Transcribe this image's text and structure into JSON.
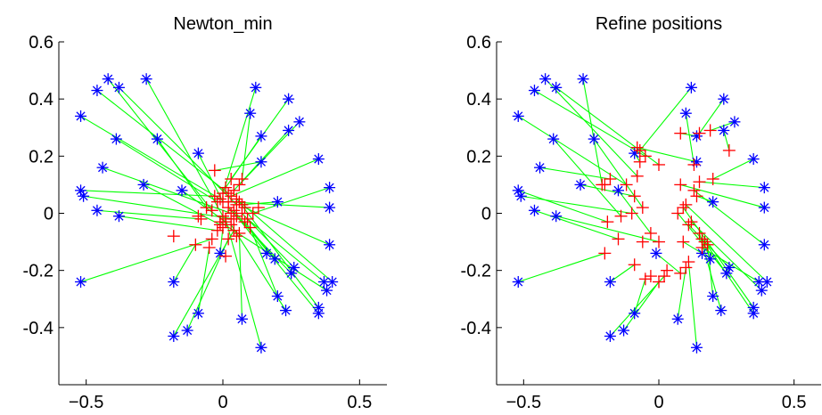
{
  "chart_data": [
    {
      "type": "scatter",
      "title": "Newton_min",
      "xlim": [
        -0.6,
        0.6
      ],
      "ylim": [
        -0.6,
        0.6
      ],
      "xticks": [
        -0.5,
        0,
        0.5
      ],
      "xtick_labels": [
        "−0.5",
        "0",
        "0.5"
      ],
      "yticks": [
        -0.4,
        -0.2,
        0,
        0.2,
        0.4,
        0.6
      ],
      "ytick_labels": [
        "-0.4",
        "-0.2",
        "0",
        "0.2",
        "0.4",
        "0.6"
      ],
      "grid": false,
      "colors": {
        "original": "#0000ff",
        "estimated": "#ff0000",
        "link": "#00ff00"
      },
      "pairs": [
        {
          "from": [
            -0.52,
            0.34
          ],
          "to": [
            -0.01,
            0.05
          ]
        },
        {
          "from": [
            -0.46,
            0.43
          ],
          "to": [
            0.02,
            0.07
          ]
        },
        {
          "from": [
            -0.42,
            0.47
          ],
          "to": [
            -0.04,
            0.01
          ]
        },
        {
          "from": [
            -0.38,
            0.44
          ],
          "to": [
            0.05,
            0.03
          ]
        },
        {
          "from": [
            -0.28,
            0.47
          ],
          "to": [
            0.0,
            -0.01
          ]
        },
        {
          "from": [
            -0.39,
            0.26
          ],
          "to": [
            -0.02,
            0.04
          ]
        },
        {
          "from": [
            -0.44,
            0.16
          ],
          "to": [
            0.03,
            0.0
          ]
        },
        {
          "from": [
            -0.24,
            0.26
          ],
          "to": [
            -0.06,
            0.02
          ]
        },
        {
          "from": [
            -0.52,
            0.08
          ],
          "to": [
            -0.03,
            0.06
          ]
        },
        {
          "from": [
            -0.51,
            0.06
          ],
          "to": [
            0.04,
            -0.02
          ]
        },
        {
          "from": [
            -0.29,
            0.1
          ],
          "to": [
            -0.01,
            -0.04
          ]
        },
        {
          "from": [
            -0.15,
            0.08
          ],
          "to": [
            0.01,
            -0.03
          ]
        },
        {
          "from": [
            -0.46,
            0.01
          ],
          "to": [
            -0.08,
            -0.02
          ]
        },
        {
          "from": [
            -0.38,
            -0.01
          ],
          "to": [
            -0.02,
            -0.06
          ]
        },
        {
          "from": [
            -0.52,
            -0.24
          ],
          "to": [
            -0.04,
            -0.09
          ]
        },
        {
          "from": [
            -0.18,
            -0.24
          ],
          "to": [
            -0.1,
            -0.11
          ]
        },
        {
          "from": [
            -0.09,
            -0.35
          ],
          "to": [
            -0.05,
            -0.12
          ]
        },
        {
          "from": [
            -0.13,
            -0.41
          ],
          "to": [
            0.02,
            -0.09
          ]
        },
        {
          "from": [
            -0.18,
            -0.43
          ],
          "to": [
            0.04,
            -0.06
          ]
        },
        {
          "from": [
            -0.01,
            -0.14
          ],
          "to": [
            0.0,
            -0.05
          ]
        },
        {
          "from": [
            0.07,
            -0.37
          ],
          "to": [
            0.06,
            -0.07
          ]
        },
        {
          "from": [
            0.14,
            -0.47
          ],
          "to": [
            0.01,
            -0.02
          ]
        },
        {
          "from": [
            0.16,
            -0.14
          ],
          "to": [
            0.05,
            -0.01
          ]
        },
        {
          "from": [
            0.19,
            -0.16
          ],
          "to": [
            0.08,
            -0.03
          ]
        },
        {
          "from": [
            0.2,
            -0.29
          ],
          "to": [
            0.1,
            -0.05
          ]
        },
        {
          "from": [
            0.23,
            -0.34
          ],
          "to": [
            0.03,
            -0.04
          ]
        },
        {
          "from": [
            0.26,
            -0.19
          ],
          "to": [
            0.07,
            0.0
          ]
        },
        {
          "from": [
            0.25,
            -0.21
          ],
          "to": [
            0.02,
            0.02
          ]
        },
        {
          "from": [
            0.35,
            -0.33
          ],
          "to": [
            0.06,
            0.04
          ]
        },
        {
          "from": [
            0.35,
            -0.35
          ],
          "to": [
            0.04,
            0.01
          ]
        },
        {
          "from": [
            0.37,
            -0.24
          ],
          "to": [
            0.09,
            -0.02
          ]
        },
        {
          "from": [
            0.38,
            -0.27
          ],
          "to": [
            -0.01,
            -0.03
          ]
        },
        {
          "from": [
            0.4,
            -0.24
          ],
          "to": [
            0.05,
            0.05
          ]
        },
        {
          "from": [
            0.39,
            -0.11
          ],
          "to": [
            0.08,
            0.02
          ]
        },
        {
          "from": [
            0.39,
            0.02
          ],
          "to": [
            0.02,
            0.04
          ]
        },
        {
          "from": [
            0.39,
            0.09
          ],
          "to": [
            0.11,
            0.0
          ]
        },
        {
          "from": [
            0.2,
            0.04
          ],
          "to": [
            0.07,
            0.03
          ]
        },
        {
          "from": [
            0.35,
            0.19
          ],
          "to": [
            0.03,
            0.06
          ]
        },
        {
          "from": [
            0.24,
            0.29
          ],
          "to": [
            0.04,
            0.08
          ]
        },
        {
          "from": [
            0.28,
            0.32
          ],
          "to": [
            0.06,
            0.1
          ]
        },
        {
          "from": [
            0.24,
            0.4
          ],
          "to": [
            0.03,
            0.12
          ]
        },
        {
          "from": [
            0.14,
            0.27
          ],
          "to": [
            0.01,
            0.09
          ]
        },
        {
          "from": [
            0.12,
            0.44
          ],
          "to": [
            0.0,
            0.07
          ]
        },
        {
          "from": [
            0.14,
            0.18
          ],
          "to": [
            -0.03,
            0.15
          ]
        },
        {
          "from": [
            0.1,
            0.35
          ],
          "to": [
            0.07,
            0.12
          ]
        },
        {
          "from": [
            -0.09,
            0.21
          ],
          "to": [
            0.0,
            0.04
          ]
        }
      ],
      "extra_estimated": [
        [
          -0.18,
          -0.08
        ],
        [
          0.01,
          -0.15
        ],
        [
          0.13,
          0.02
        ],
        [
          -0.09,
          -0.01
        ],
        [
          0.05,
          -0.08
        ]
      ]
    },
    {
      "type": "scatter",
      "title": "Refine positions",
      "xlim": [
        -0.6,
        0.6
      ],
      "ylim": [
        -0.6,
        0.6
      ],
      "xticks": [
        -0.5,
        0,
        0.5
      ],
      "xtick_labels": [
        "−0.5",
        "0",
        "0.5"
      ],
      "yticks": [
        -0.4,
        -0.2,
        0,
        0.2,
        0.4,
        0.6
      ],
      "ytick_labels": [
        "-0.4",
        "-0.2",
        "0",
        "0.2",
        "0.4",
        "0.6"
      ],
      "grid": false,
      "colors": {
        "original": "#0000ff",
        "estimated": "#ff0000",
        "link": "#00ff00"
      },
      "pairs": [
        {
          "from": [
            -0.52,
            0.34
          ],
          "to": [
            -0.12,
            0.1
          ]
        },
        {
          "from": [
            -0.46,
            0.43
          ],
          "to": [
            -0.05,
            0.2
          ]
        },
        {
          "from": [
            -0.42,
            0.47
          ],
          "to": [
            -0.08,
            0.13
          ]
        },
        {
          "from": [
            -0.38,
            0.44
          ],
          "to": [
            0.0,
            0.17
          ]
        },
        {
          "from": [
            -0.28,
            0.47
          ],
          "to": [
            -0.21,
            0.1
          ]
        },
        {
          "from": [
            -0.39,
            0.26
          ],
          "to": [
            -0.14,
            -0.01
          ]
        },
        {
          "from": [
            -0.44,
            0.16
          ],
          "to": [
            -0.18,
            0.12
          ]
        },
        {
          "from": [
            -0.24,
            0.26
          ],
          "to": [
            -0.06,
            0.02
          ]
        },
        {
          "from": [
            -0.52,
            0.08
          ],
          "to": [
            -0.19,
            -0.03
          ]
        },
        {
          "from": [
            -0.51,
            0.06
          ],
          "to": [
            -0.1,
            0.0
          ]
        },
        {
          "from": [
            -0.29,
            0.1
          ],
          "to": [
            -0.09,
            0.06
          ]
        },
        {
          "from": [
            -0.15,
            0.08
          ],
          "to": [
            -0.03,
            -0.07
          ]
        },
        {
          "from": [
            -0.46,
            0.01
          ],
          "to": [
            -0.15,
            -0.09
          ]
        },
        {
          "from": [
            -0.38,
            -0.01
          ],
          "to": [
            0.0,
            -0.1
          ]
        },
        {
          "from": [
            -0.52,
            -0.24
          ],
          "to": [
            -0.2,
            -0.14
          ]
        },
        {
          "from": [
            -0.18,
            -0.24
          ],
          "to": [
            -0.09,
            -0.18
          ]
        },
        {
          "from": [
            -0.09,
            -0.35
          ],
          "to": [
            -0.05,
            -0.23
          ]
        },
        {
          "from": [
            -0.13,
            -0.41
          ],
          "to": [
            0.0,
            -0.24
          ]
        },
        {
          "from": [
            -0.18,
            -0.43
          ],
          "to": [
            0.02,
            -0.22
          ]
        },
        {
          "from": [
            -0.01,
            -0.14
          ],
          "to": [
            0.08,
            -0.21
          ]
        },
        {
          "from": [
            0.07,
            -0.37
          ],
          "to": [
            0.1,
            -0.19
          ]
        },
        {
          "from": [
            0.14,
            -0.47
          ],
          "to": [
            0.11,
            -0.17
          ]
        },
        {
          "from": [
            0.16,
            -0.14
          ],
          "to": [
            0.09,
            -0.1
          ]
        },
        {
          "from": [
            0.19,
            -0.16
          ],
          "to": [
            0.16,
            -0.09
          ]
        },
        {
          "from": [
            0.2,
            -0.29
          ],
          "to": [
            0.18,
            -0.11
          ]
        },
        {
          "from": [
            0.23,
            -0.34
          ],
          "to": [
            0.15,
            -0.07
          ]
        },
        {
          "from": [
            0.26,
            -0.19
          ],
          "to": [
            0.11,
            -0.04
          ]
        },
        {
          "from": [
            0.25,
            -0.21
          ],
          "to": [
            0.07,
            0.0
          ]
        },
        {
          "from": [
            0.35,
            -0.33
          ],
          "to": [
            0.09,
            0.02
          ]
        },
        {
          "from": [
            0.35,
            -0.35
          ],
          "to": [
            0.17,
            -0.1
          ]
        },
        {
          "from": [
            0.37,
            -0.24
          ],
          "to": [
            0.16,
            -0.12
          ]
        },
        {
          "from": [
            0.38,
            -0.27
          ],
          "to": [
            0.12,
            -0.03
          ]
        },
        {
          "from": [
            0.4,
            -0.24
          ],
          "to": [
            0.1,
            0.03
          ]
        },
        {
          "from": [
            0.39,
            -0.11
          ],
          "to": [
            0.13,
            0.08
          ]
        },
        {
          "from": [
            0.39,
            0.02
          ],
          "to": [
            0.08,
            0.1
          ]
        },
        {
          "from": [
            0.39,
            0.09
          ],
          "to": [
            0.15,
            0.11
          ]
        },
        {
          "from": [
            0.2,
            0.04
          ],
          "to": [
            0.14,
            0.06
          ]
        },
        {
          "from": [
            0.35,
            0.19
          ],
          "to": [
            0.2,
            0.12
          ]
        },
        {
          "from": [
            0.24,
            0.29
          ],
          "to": [
            0.26,
            0.22
          ]
        },
        {
          "from": [
            0.28,
            0.32
          ],
          "to": [
            0.19,
            0.29
          ]
        },
        {
          "from": [
            0.24,
            0.4
          ],
          "to": [
            0.15,
            0.28
          ]
        },
        {
          "from": [
            0.14,
            0.27
          ],
          "to": [
            0.08,
            0.28
          ]
        },
        {
          "from": [
            0.12,
            0.44
          ],
          "to": [
            -0.07,
            0.22
          ]
        },
        {
          "from": [
            0.14,
            0.18
          ],
          "to": [
            -0.08,
            0.23
          ]
        },
        {
          "from": [
            0.1,
            0.35
          ],
          "to": [
            0.13,
            0.17
          ]
        },
        {
          "from": [
            -0.09,
            0.21
          ],
          "to": [
            -0.07,
            0.18
          ]
        }
      ],
      "extra_estimated": [
        [
          -0.2,
          0.1
        ],
        [
          -0.06,
          -0.1
        ],
        [
          0.03,
          -0.2
        ],
        [
          -0.03,
          -0.22
        ]
      ]
    }
  ]
}
